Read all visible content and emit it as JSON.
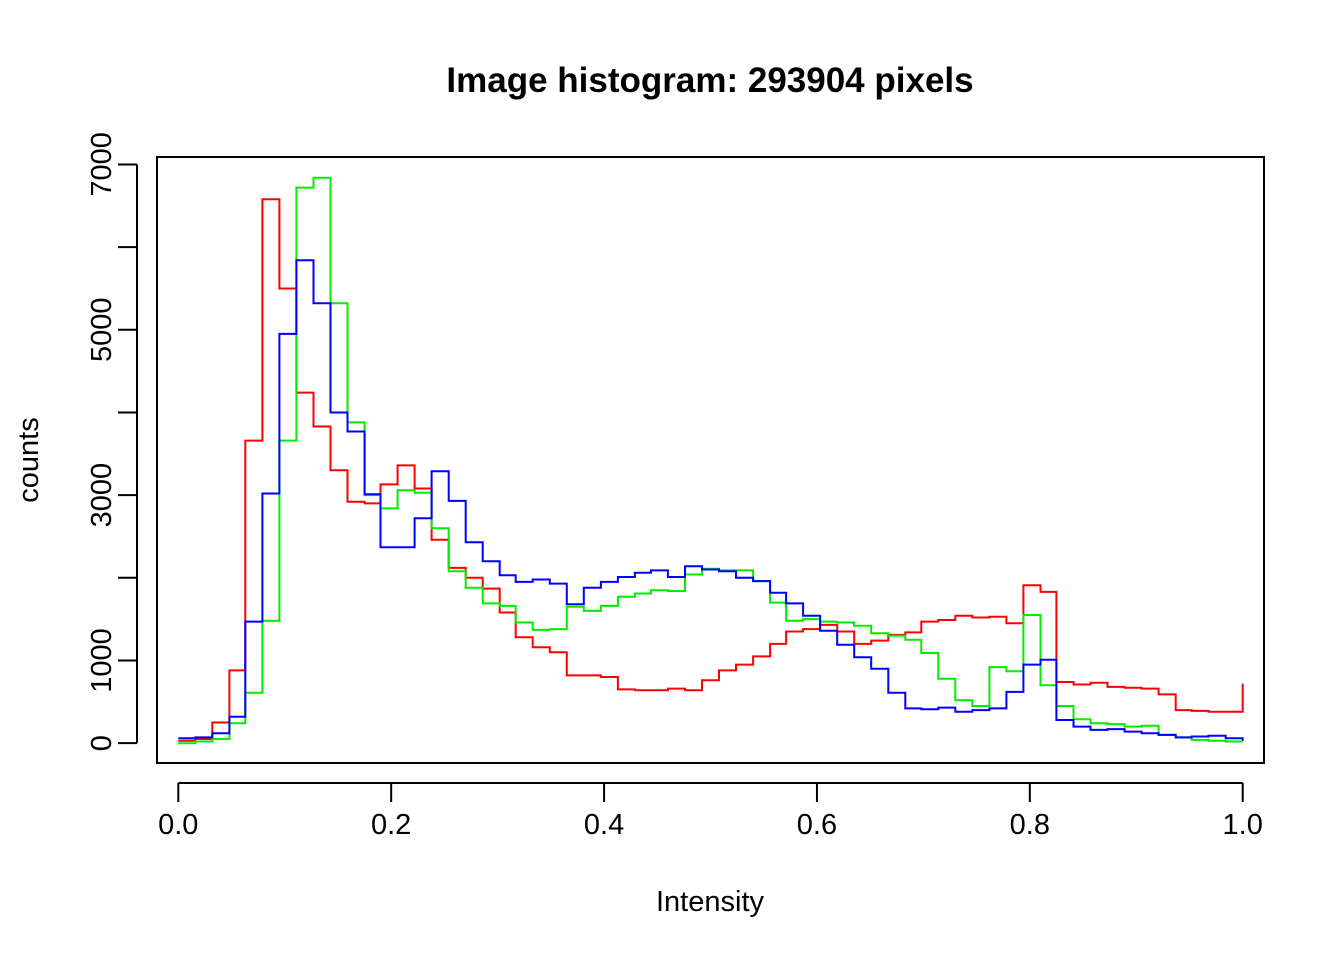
{
  "chart_data": {
    "type": "line",
    "title": "Image histogram: 293904 pixels",
    "xlabel": "Intensity",
    "ylabel": "counts",
    "xlim": [
      -0.02,
      1.02
    ],
    "ylim": [
      -240,
      7090
    ],
    "x_ticks": [
      0.0,
      0.2,
      0.4,
      0.6,
      0.8,
      1.0
    ],
    "x_tick_labels": [
      "0.0",
      "0.2",
      "0.4",
      "0.6",
      "0.8",
      "1.0"
    ],
    "y_ticks": [
      0,
      1000,
      2000,
      3000,
      4000,
      5000,
      6000,
      7000
    ],
    "y_tick_labels": [
      "0",
      "1000",
      "",
      "3000",
      "",
      "5000",
      "",
      "7000"
    ],
    "grid": false,
    "step_style": "histogram-step",
    "bin_edges": [
      0.0,
      0.016,
      0.032,
      0.048,
      0.063,
      0.079,
      0.095,
      0.111,
      0.127,
      0.143,
      0.159,
      0.175,
      0.19,
      0.206,
      0.222,
      0.238,
      0.254,
      0.27,
      0.286,
      0.302,
      0.317,
      0.333,
      0.349,
      0.365,
      0.381,
      0.397,
      0.413,
      0.429,
      0.444,
      0.46,
      0.476,
      0.492,
      0.508,
      0.524,
      0.54,
      0.556,
      0.571,
      0.587,
      0.603,
      0.619,
      0.635,
      0.651,
      0.667,
      0.683,
      0.698,
      0.714,
      0.73,
      0.746,
      0.762,
      0.778,
      0.794,
      0.81,
      0.825,
      0.841,
      0.857,
      0.873,
      0.889,
      0.905,
      0.921,
      0.937,
      0.952,
      0.968,
      0.984,
      1.0
    ],
    "series": [
      {
        "color": "#ff0000",
        "values": [
          30,
          50,
          250,
          880,
          3660,
          6580,
          5500,
          4240,
          3830,
          3300,
          2920,
          2900,
          3130,
          3360,
          3080,
          2460,
          2120,
          2000,
          1870,
          1580,
          1280,
          1160,
          1100,
          820,
          820,
          800,
          650,
          640,
          640,
          660,
          640,
          760,
          880,
          950,
          1050,
          1200,
          1350,
          1380,
          1430,
          1350,
          1200,
          1240,
          1310,
          1340,
          1470,
          1490,
          1540,
          1520,
          1530,
          1450,
          1910,
          1830,
          740,
          710,
          730,
          680,
          670,
          660,
          590,
          400,
          390,
          380,
          380,
          720
        ]
      },
      {
        "color": "#00ee00",
        "values": [
          0,
          20,
          50,
          240,
          610,
          1480,
          3660,
          6720,
          6840,
          5320,
          3880,
          3000,
          2840,
          3060,
          3030,
          2600,
          2080,
          1880,
          1690,
          1660,
          1460,
          1370,
          1380,
          1650,
          1600,
          1660,
          1770,
          1810,
          1850,
          1840,
          2040,
          2110,
          2090,
          2090,
          1960,
          1700,
          1480,
          1500,
          1470,
          1460,
          1420,
          1330,
          1300,
          1250,
          1090,
          780,
          520,
          450,
          920,
          870,
          1550,
          700,
          450,
          290,
          240,
          230,
          200,
          210,
          100,
          70,
          40,
          30,
          20,
          20
        ]
      },
      {
        "color": "#0000ff",
        "values": [
          60,
          70,
          120,
          320,
          1470,
          3020,
          4950,
          5840,
          5320,
          4000,
          3770,
          3010,
          2370,
          2370,
          2720,
          3290,
          2930,
          2430,
          2200,
          2030,
          1950,
          1980,
          1930,
          1680,
          1880,
          1950,
          2010,
          2060,
          2090,
          2010,
          2140,
          2100,
          2080,
          2000,
          1960,
          1820,
          1690,
          1540,
          1360,
          1190,
          1040,
          900,
          610,
          420,
          410,
          430,
          380,
          400,
          420,
          620,
          950,
          1010,
          280,
          200,
          160,
          170,
          140,
          120,
          100,
          70,
          80,
          90,
          60,
          30
        ]
      }
    ]
  }
}
